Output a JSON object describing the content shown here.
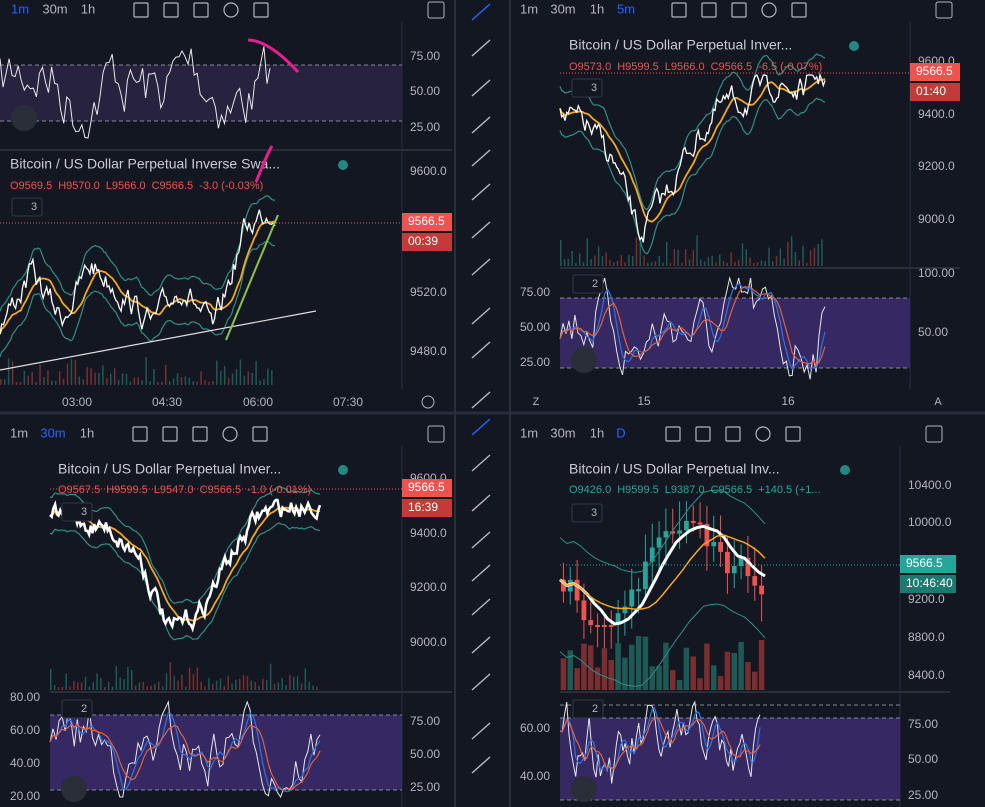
{
  "panels": [
    {
      "intervals": [
        "1m",
        "30m",
        "1h"
      ],
      "active": 0,
      "title": "Bitcoin / US Dollar Perpetual Inverse Swa...",
      "ohlc": [
        "O9569.5",
        "H9570.0",
        "L9566.0",
        "C9566.5",
        "-3.0 (-0.03%)"
      ],
      "direction": "down",
      "study_count": "3",
      "price_labels": [
        "9600.0",
        "9520.0",
        "9480.0"
      ],
      "price_badge": "9566.5",
      "countdown": "00:39",
      "indicator_labels": [
        "75.00",
        "50.00",
        "25.00"
      ],
      "time_labels": [
        "03:00",
        "04:30",
        "06:00",
        "07:30"
      ]
    },
    {
      "intervals": [
        "1m",
        "30m",
        "1h",
        "5m"
      ],
      "active": 3,
      "title": "Bitcoin / US Dollar Perpetual Inver...",
      "ohlc": [
        "O9573.0",
        "H9599.5",
        "L9566.0",
        "C9566.5",
        "-6.5 (-0.07%)"
      ],
      "direction": "down",
      "study_count": "3",
      "price_labels": [
        "9600.0",
        "9400.0",
        "9200.0",
        "9000.0"
      ],
      "price_badge": "9566.5",
      "countdown": "01:40",
      "indicator_count": "2",
      "indicator_labels_left": [
        "75.00",
        "50.00",
        "25.00"
      ],
      "indicator_labels": [
        "100.00",
        "50.00"
      ],
      "time_labels": [
        "15",
        "16"
      ],
      "corner_left": "Z",
      "corner_right": "A"
    },
    {
      "intervals": [
        "1m",
        "30m",
        "1h"
      ],
      "active": 1,
      "title": "Bitcoin / US Dollar Perpetual Inver...",
      "ohlc": [
        "O9567.5",
        "H9599.5",
        "L9547.0",
        "C9566.5",
        "-1.0 (-0.01%)"
      ],
      "direction": "down",
      "study_count": "3",
      "price_labels": [
        "9600.0",
        "9400.0",
        "9200.0",
        "9000.0"
      ],
      "price_badge": "9566.5",
      "countdown": "16:39",
      "indicator_count": "2",
      "indicator_labels_left": [
        "80.00",
        "60.00",
        "40.00",
        "20.00"
      ],
      "indicator_labels": [
        "75.00",
        "50.00",
        "25.00"
      ]
    },
    {
      "intervals": [
        "1m",
        "30m",
        "1h",
        "D"
      ],
      "active": 3,
      "title": "Bitcoin / US Dollar Perpetual Inv...",
      "ohlc": [
        "O9426.0",
        "H9599.5",
        "L9387.0",
        "C9566.5",
        "+140.5 (+1..."
      ],
      "direction": "up",
      "study_count": "3",
      "price_labels": [
        "10400.0",
        "10000.0",
        "9200.0",
        "8800.0",
        "8400.0"
      ],
      "price_badge": "9566.5",
      "countdown": "10:46:40",
      "indicator_count": "2",
      "indicator_labels_left": [
        "60.00",
        "40.00"
      ],
      "indicator_labels": [
        "75.00",
        "50.00",
        "25.00"
      ]
    }
  ]
}
